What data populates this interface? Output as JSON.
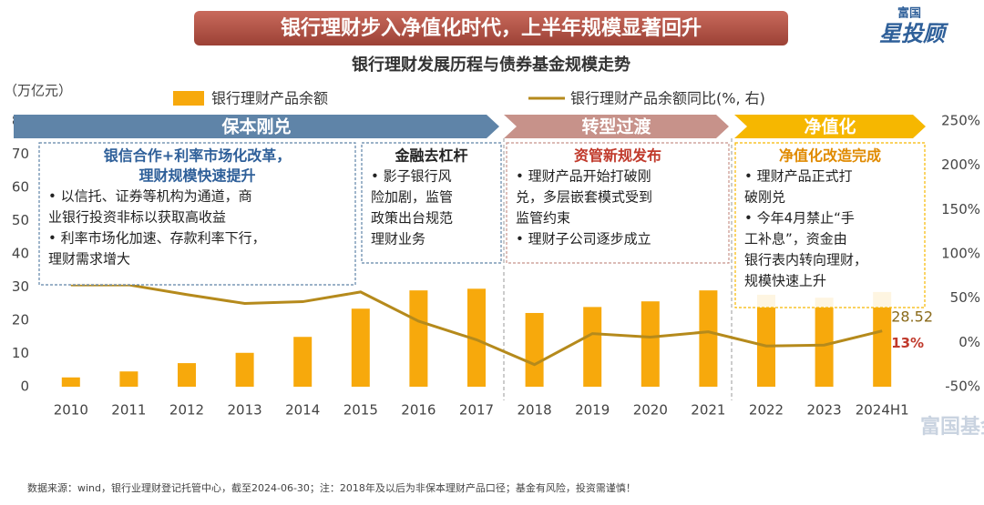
{
  "header": {
    "title": "银行理财步入净值化时代，上半年规模显著回升",
    "logo_top": "富国",
    "logo_main": "星投顾"
  },
  "chart_data": {
    "type": "combo",
    "title": "银行理财发展历程与债券基金规模走势",
    "y_label": "（万亿元）",
    "categories": [
      "2010",
      "2011",
      "2012",
      "2013",
      "2014",
      "2015",
      "2016",
      "2017",
      "2018",
      "2019",
      "2020",
      "2021",
      "2022",
      "2023",
      "2024H1"
    ],
    "series": [
      {
        "name": "银行理财产品余额",
        "type": "bar",
        "color": "#f7a90c",
        "values": [
          2.8,
          4.6,
          7.1,
          10.2,
          15,
          23.5,
          29,
          29.5,
          22.2,
          24,
          25.7,
          29,
          27.7,
          26.8,
          28.52
        ]
      },
      {
        "name": "银行理财产品余额同比(%, 右)",
        "type": "line",
        "axis": "y2",
        "color": "#b58a1c",
        "values": [
          65,
          65,
          54,
          44,
          46,
          57,
          24,
          3,
          -25,
          10,
          6,
          12,
          -4,
          -3,
          13
        ],
        "value_labels": [
          null,
          null,
          null,
          null,
          null,
          null,
          null,
          null,
          null,
          null,
          null,
          null,
          null,
          null,
          "13%"
        ]
      }
    ],
    "ylim": [
      0,
      80
    ],
    "yticks": [
      0,
      10,
      20,
      30,
      40,
      50,
      60,
      70,
      80
    ],
    "y2lim": [
      -50,
      250
    ],
    "y2ticks": [
      {
        "value": -50,
        "label": "-50%"
      },
      {
        "value": 0,
        "label": "0%"
      },
      {
        "value": 50,
        "label": "50%"
      },
      {
        "value": 100,
        "label": "100%"
      },
      {
        "value": 150,
        "label": "150%"
      },
      {
        "value": 200,
        "label": "200%"
      },
      {
        "value": 250,
        "label": "250%"
      }
    ],
    "phases": [
      {
        "label": "保本刚兑",
        "color": "#5f84a8"
      },
      {
        "label": "转型过渡",
        "color": "#c7928a"
      },
      {
        "label": "净值化",
        "color": "#f6b700"
      }
    ],
    "annotations": [
      {
        "title": [
          "银信合作+利率市场化改革，",
          "理财规模快速提升"
        ],
        "color": "#2e5f99",
        "bullets": [
          [
            "• 以信托、证券等机构为通道，商",
            "业银行投资非标以获取高收益"
          ],
          [
            "• 利率市场化加速、存款利率下行，",
            "理财需求增大"
          ]
        ]
      },
      {
        "title": [
          "金融去杠杆"
        ],
        "color": "#222222",
        "bullets": [
          [
            "• 影子银行风",
            "险加剧，监管",
            "政策出台规范",
            "理财业务"
          ]
        ]
      },
      {
        "title": [
          "资管新规发布"
        ],
        "color": "#c0392b",
        "bullets": [
          [
            "• 理财产品开始打破刚",
            "兑，多层嵌套模式受到",
            "监管约束"
          ],
          [
            "• 理财子公司逐步成立"
          ]
        ]
      },
      {
        "title": [
          "净值化改造完成"
        ],
        "color": "#e08a00",
        "bullets": [
          [
            "• 理财产品正式打",
            "破刚兑"
          ],
          [
            "• 今年4月禁止“手",
            "工补息”，资金由",
            "银行表内转向理财，",
            "规模快速上升"
          ]
        ]
      }
    ]
  },
  "footer": {
    "source": "数据来源：wind，银行业理财登记托管中心，截至2024-06-30；注：2018年及以后为非保本理财产品口径；基金有风险，投资需谨慎！",
    "watermark": "富国基金"
  }
}
